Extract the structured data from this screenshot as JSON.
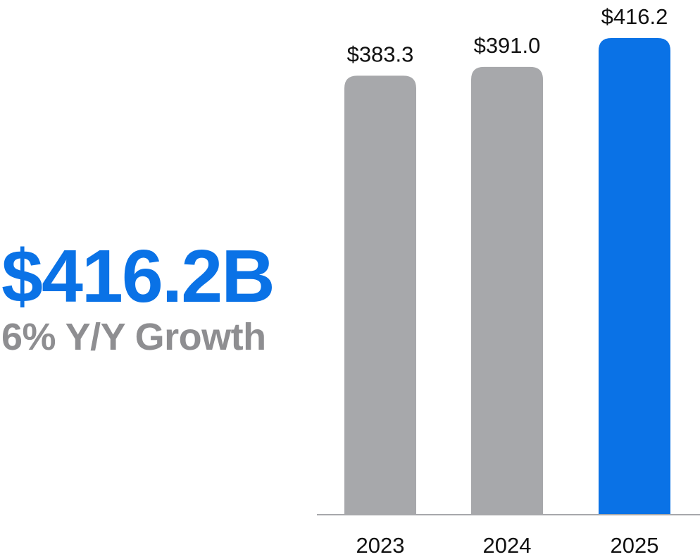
{
  "headline": {
    "value": "$416.2B",
    "subtitle": "6% Y/Y Growth"
  },
  "colors": {
    "accent": "#0A72E6",
    "muted_bar": "#A7A8AB",
    "subtitle": "#8E8E91",
    "baseline": "#A7A8AB"
  },
  "chart_data": {
    "type": "bar",
    "categories": [
      "2023",
      "2024",
      "2025"
    ],
    "values": [
      383.3,
      391.0,
      416.2
    ],
    "data_labels": [
      "$383.3",
      "$391.0",
      "$416.2"
    ],
    "highlight_index": 2,
    "title": "",
    "xlabel": "",
    "ylabel": "",
    "grid": false
  }
}
